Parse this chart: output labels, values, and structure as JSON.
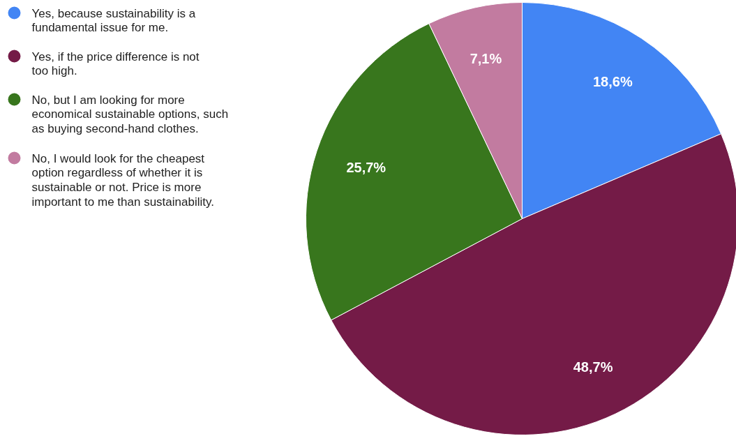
{
  "chart_data": {
    "type": "pie",
    "categories": [
      "Yes, because sustainability is a fundamental issue for me.",
      "Yes, if the price difference is not too high.",
      "No, but I am looking for more economical sustainable options, such as buying second-hand clothes.",
      "No, I would look for the cheapest option regardless of whether it is sustainable or not. Price is more important to me than sustainability."
    ],
    "values": [
      18.6,
      48.7,
      25.7,
      7.1
    ],
    "colors": [
      "#4285f4",
      "#741b47",
      "#38761d",
      "#c27ba0"
    ],
    "value_labels": [
      "18,6%",
      "48,7%",
      "25,7%",
      "7,1%"
    ],
    "legend": "left"
  }
}
